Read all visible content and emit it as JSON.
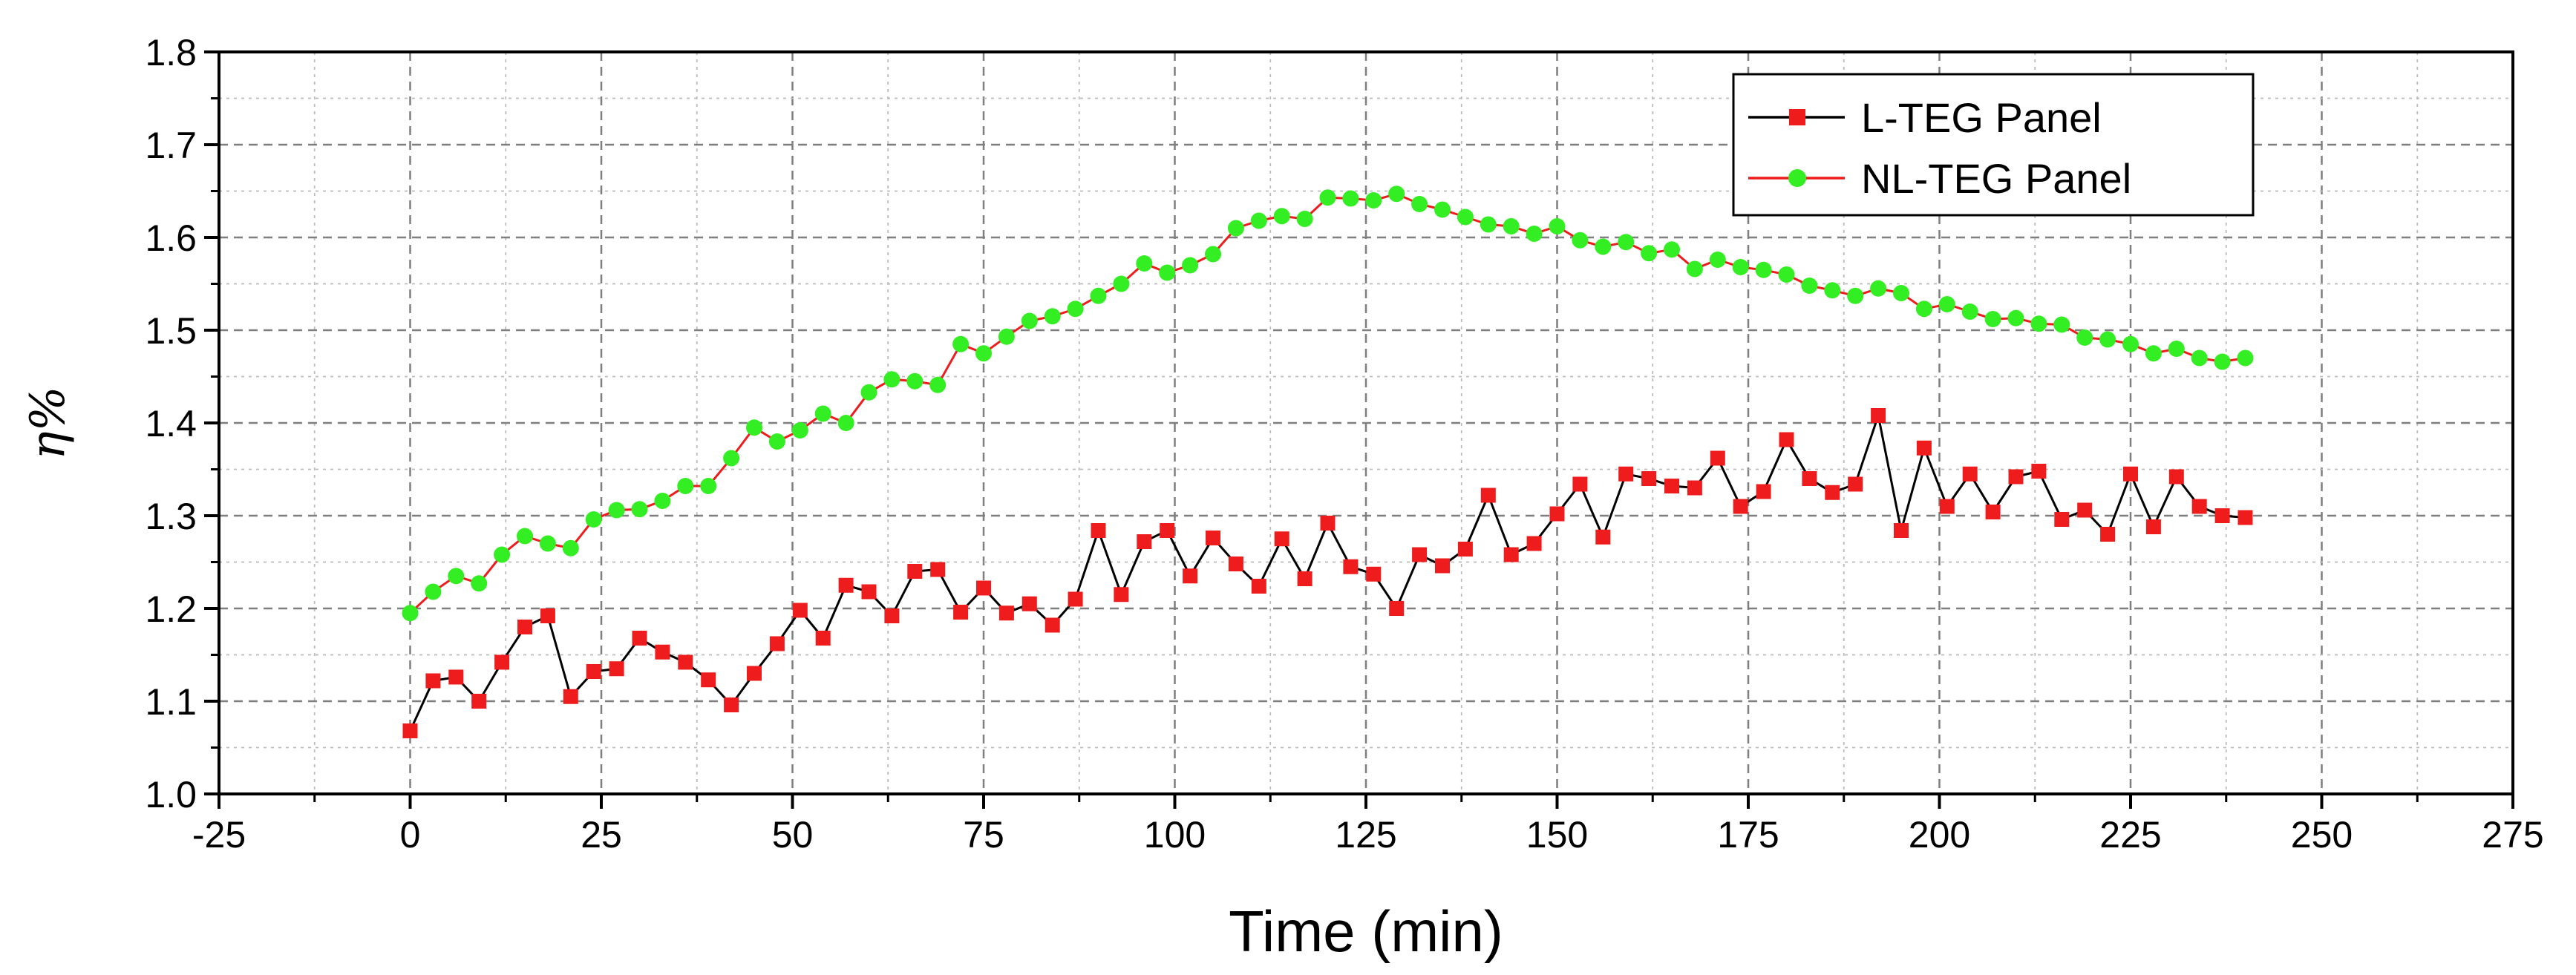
{
  "chart_data": {
    "type": "line",
    "title": "",
    "xlabel": "Time (min)",
    "ylabel": "η%",
    "xlim": [
      -25,
      275
    ],
    "ylim": [
      1.0,
      1.8
    ],
    "xticks": [
      -25,
      0,
      25,
      50,
      75,
      100,
      125,
      150,
      175,
      200,
      225,
      250,
      275
    ],
    "xtick_labels": [
      "-25",
      "0",
      "25",
      "50",
      "75",
      "100",
      "125",
      "150",
      "175",
      "200",
      "225",
      "250",
      "275"
    ],
    "yticks": [
      1.0,
      1.1,
      1.2,
      1.3,
      1.4,
      1.5,
      1.6,
      1.7,
      1.8
    ],
    "ytick_labels": [
      "1.0",
      "1.1",
      "1.2",
      "1.3",
      "1.4",
      "1.5",
      "1.6",
      "1.7",
      "1.8"
    ],
    "grid": true,
    "legend_position": "top-right",
    "x": [
      0,
      3,
      6,
      9,
      12,
      15,
      18,
      21,
      24,
      27,
      30,
      33,
      36,
      39,
      42,
      45,
      48,
      51,
      54,
      57,
      60,
      63,
      66,
      69,
      72,
      75,
      78,
      81,
      84,
      87,
      90,
      93,
      96,
      99,
      102,
      105,
      108,
      111,
      114,
      117,
      120,
      123,
      126,
      129,
      132,
      135,
      138,
      141,
      144,
      147,
      150,
      153,
      156,
      159,
      162,
      165,
      168,
      171,
      174,
      177,
      180,
      183,
      186,
      189,
      192,
      195,
      198,
      201,
      204,
      207,
      210,
      213,
      216,
      219,
      222,
      225,
      228,
      231,
      234,
      237,
      240
    ],
    "series": [
      {
        "name": "L-TEG Panel",
        "line_color": "#000000",
        "marker": "square",
        "marker_color": "#ee1c1c",
        "values": [
          1.068,
          1.122,
          1.126,
          1.1,
          1.142,
          1.18,
          1.192,
          1.105,
          1.132,
          1.135,
          1.168,
          1.153,
          1.142,
          1.123,
          1.096,
          1.13,
          1.162,
          1.198,
          1.168,
          1.225,
          1.218,
          1.192,
          1.24,
          1.242,
          1.196,
          1.222,
          1.195,
          1.205,
          1.182,
          1.21,
          1.284,
          1.215,
          1.272,
          1.284,
          1.235,
          1.276,
          1.248,
          1.224,
          1.275,
          1.232,
          1.292,
          1.245,
          1.237,
          1.2,
          1.258,
          1.246,
          1.264,
          1.322,
          1.258,
          1.27,
          1.302,
          1.334,
          1.277,
          1.345,
          1.34,
          1.332,
          1.33,
          1.362,
          1.31,
          1.326,
          1.382,
          1.34,
          1.325,
          1.334,
          1.408,
          1.284,
          1.373,
          1.31,
          1.345,
          1.304,
          1.342,
          1.348,
          1.296,
          1.306,
          1.28,
          1.345,
          1.288,
          1.342,
          1.31,
          1.3,
          1.298
        ]
      },
      {
        "name": "NL-TEG Panel",
        "line_color": "#ee1c1c",
        "marker": "circle",
        "marker_color": "#33ee22",
        "values": [
          1.195,
          1.218,
          1.235,
          1.227,
          1.258,
          1.278,
          1.27,
          1.265,
          1.296,
          1.306,
          1.307,
          1.316,
          1.332,
          1.332,
          1.362,
          1.395,
          1.38,
          1.392,
          1.41,
          1.4,
          1.433,
          1.447,
          1.445,
          1.441,
          1.485,
          1.475,
          1.493,
          1.51,
          1.515,
          1.523,
          1.537,
          1.55,
          1.572,
          1.562,
          1.57,
          1.582,
          1.61,
          1.618,
          1.623,
          1.62,
          1.643,
          1.642,
          1.64,
          1.647,
          1.636,
          1.63,
          1.622,
          1.614,
          1.612,
          1.604,
          1.612,
          1.597,
          1.59,
          1.595,
          1.583,
          1.587,
          1.566,
          1.576,
          1.568,
          1.565,
          1.56,
          1.548,
          1.543,
          1.537,
          1.545,
          1.54,
          1.523,
          1.528,
          1.52,
          1.512,
          1.513,
          1.507,
          1.506,
          1.492,
          1.49,
          1.485,
          1.475,
          1.48,
          1.47,
          1.466,
          1.47
        ]
      }
    ]
  }
}
